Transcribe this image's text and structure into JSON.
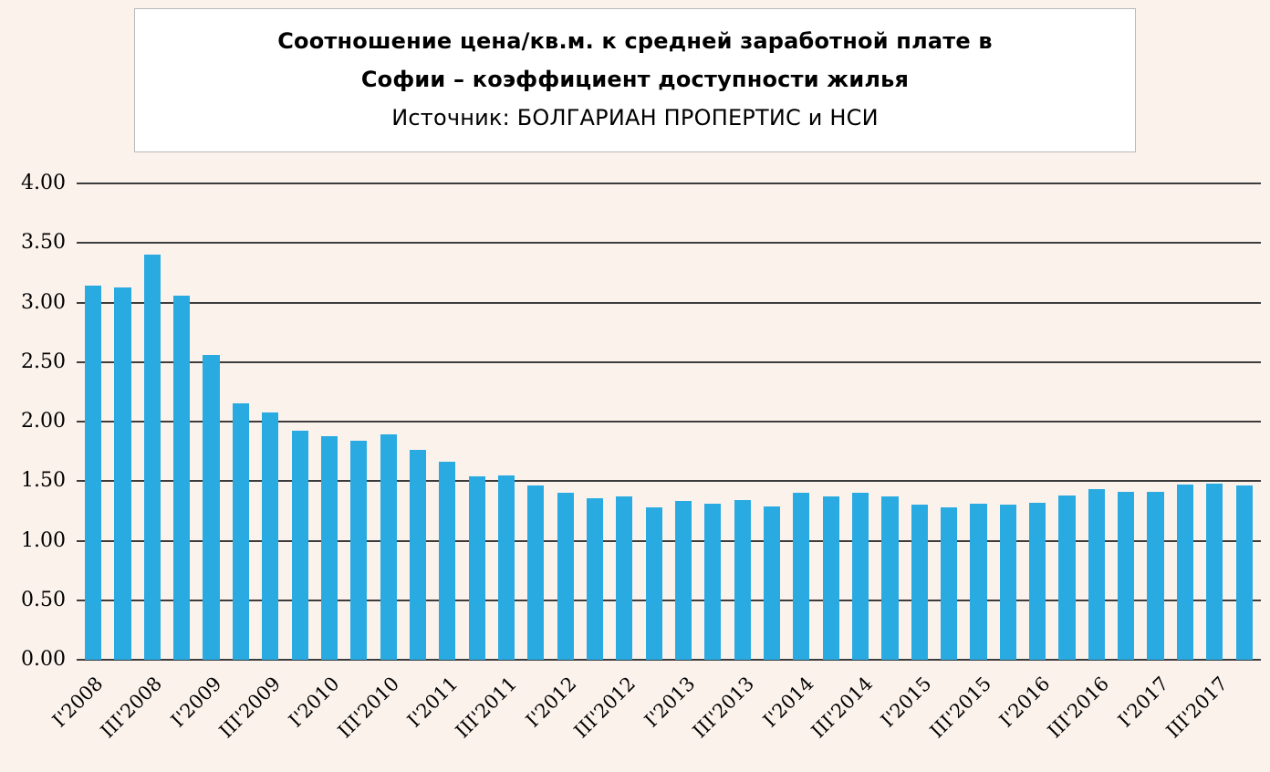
{
  "title": {
    "line1": "Соотношение цена/кв.м. к средней заработной плате в",
    "line2": "Софии – коэффициент доступности жилья",
    "line3": "Источник: БОЛГАРИАН ПРОПЕРТИС и НСИ"
  },
  "colors": {
    "page_bg": "#FBF2EC",
    "title_box_bg": "#FFFFFF",
    "bar_color": "#29ABE2",
    "gridline_color": "#3D3D3D",
    "text_color": "#000000"
  },
  "chart_data": {
    "type": "bar",
    "title": "Соотношение цена/кв.м. к средней заработной плате в Софии – коэффициент доступности жилья",
    "subtitle": "Источник: БОЛГАРИАН ПРОПЕРТИС и НСИ",
    "n_bars": 40,
    "values": [
      3.14,
      3.13,
      3.4,
      3.06,
      2.56,
      2.15,
      2.08,
      1.92,
      1.88,
      1.84,
      1.89,
      1.76,
      1.66,
      1.54,
      1.55,
      1.46,
      1.4,
      1.36,
      1.37,
      1.28,
      1.33,
      1.31,
      1.34,
      1.29,
      1.4,
      1.37,
      1.4,
      1.37,
      1.3,
      1.28,
      1.31,
      1.3,
      1.32,
      1.38,
      1.43,
      1.41,
      1.41,
      1.47,
      1.48,
      1.46
    ],
    "x_tick_labels": [
      "I'2008",
      "III'2008",
      "I'2009",
      "III'2009",
      "I'2010",
      "III'2010",
      "I'2011",
      "III'2011",
      "I'2012",
      "III'2012",
      "I'2013",
      "III'2013",
      "I'2014",
      "III'2014",
      "I'2015",
      "III'2015",
      "I'2016",
      "III'2016",
      "I'2017",
      "III'2017"
    ],
    "x_tick_every": 2,
    "ylim": [
      0,
      4
    ],
    "yticks": [
      "0.00",
      "0.50",
      "1.00",
      "1.50",
      "2.00",
      "2.50",
      "3.00",
      "3.50",
      "4.00"
    ],
    "grid": true,
    "legend": false,
    "xlabel": "",
    "ylabel": ""
  }
}
